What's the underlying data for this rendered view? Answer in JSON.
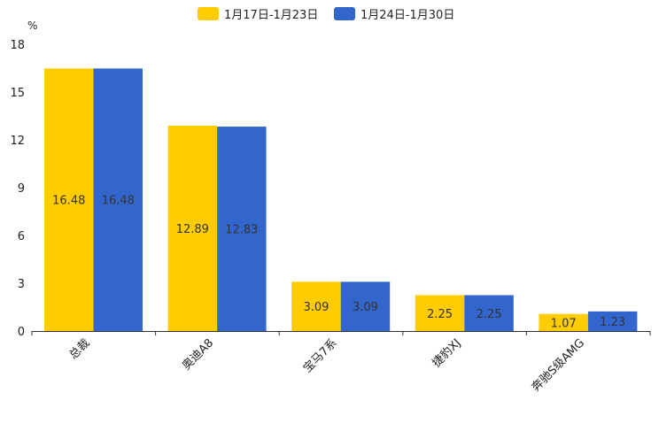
{
  "chart_data": {
    "type": "bar",
    "title": "",
    "ylabel": "%",
    "xlabel": "",
    "categories": [
      "总裁",
      "奥迪A8",
      "宝马7系",
      "捷豹XJ",
      "奔驰S级AMG"
    ],
    "series": [
      {
        "name": "1月17日-1月23日",
        "color": "#FFCC00",
        "values": [
          16.48,
          12.89,
          3.09,
          2.25,
          1.07
        ]
      },
      {
        "name": "1月24日-1月30日",
        "color": "#3366CC",
        "values": [
          16.48,
          12.83,
          3.09,
          2.25,
          1.23
        ]
      }
    ],
    "ylim": [
      0,
      18
    ],
    "yticks": [
      0,
      3,
      6,
      9,
      12,
      15,
      18
    ],
    "legend_position": "top-center",
    "grid": false
  }
}
